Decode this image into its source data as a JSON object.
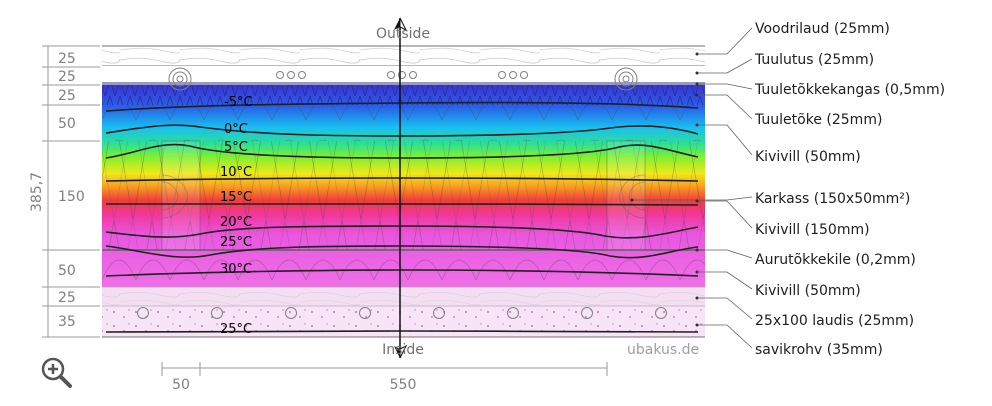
{
  "diagram": {
    "side_top": "Outside",
    "side_bottom": "Inside",
    "watermark": "ubakus.de",
    "total_thickness": "385,7",
    "layers": [
      {
        "label": "Voodrilaud (25mm)",
        "thickness": "25"
      },
      {
        "label": "Tuulutus (25mm)",
        "thickness": "25"
      },
      {
        "label": "Tuuletõkkekangas (0,5mm)",
        "thickness": ""
      },
      {
        "label": "Tuuletõke (25mm)",
        "thickness": "25"
      },
      {
        "label": "Kivivill (50mm)",
        "thickness": "50"
      },
      {
        "label": "Karkass (150x50mm²)",
        "thickness": ""
      },
      {
        "label": "Kivivill (150mm)",
        "thickness": "150"
      },
      {
        "label": "Aurutõkkekile (0,2mm)",
        "thickness": ""
      },
      {
        "label": "Kivivill (50mm)",
        "thickness": "50"
      },
      {
        "label": "25x100 laudis (25mm)",
        "thickness": "25"
      },
      {
        "label": "savikrohv (35mm)",
        "thickness": "35"
      }
    ],
    "isotherms": [
      "-5°C",
      "0°C",
      "5°C",
      "10°C",
      "15°C",
      "20°C",
      "25°C",
      "30°C",
      "25°C"
    ],
    "bottom_dims": [
      "50",
      "550"
    ],
    "colors": {
      "cold": "#3a2fd0",
      "cool": "#1ab4f0",
      "mid": "#3ee07a",
      "warm": "#f0e020",
      "hot": "#f03a40",
      "inner": "#e85ae0",
      "plaster": "#f7e2f7"
    },
    "zoom_icon": "magnifier-plus-icon"
  }
}
